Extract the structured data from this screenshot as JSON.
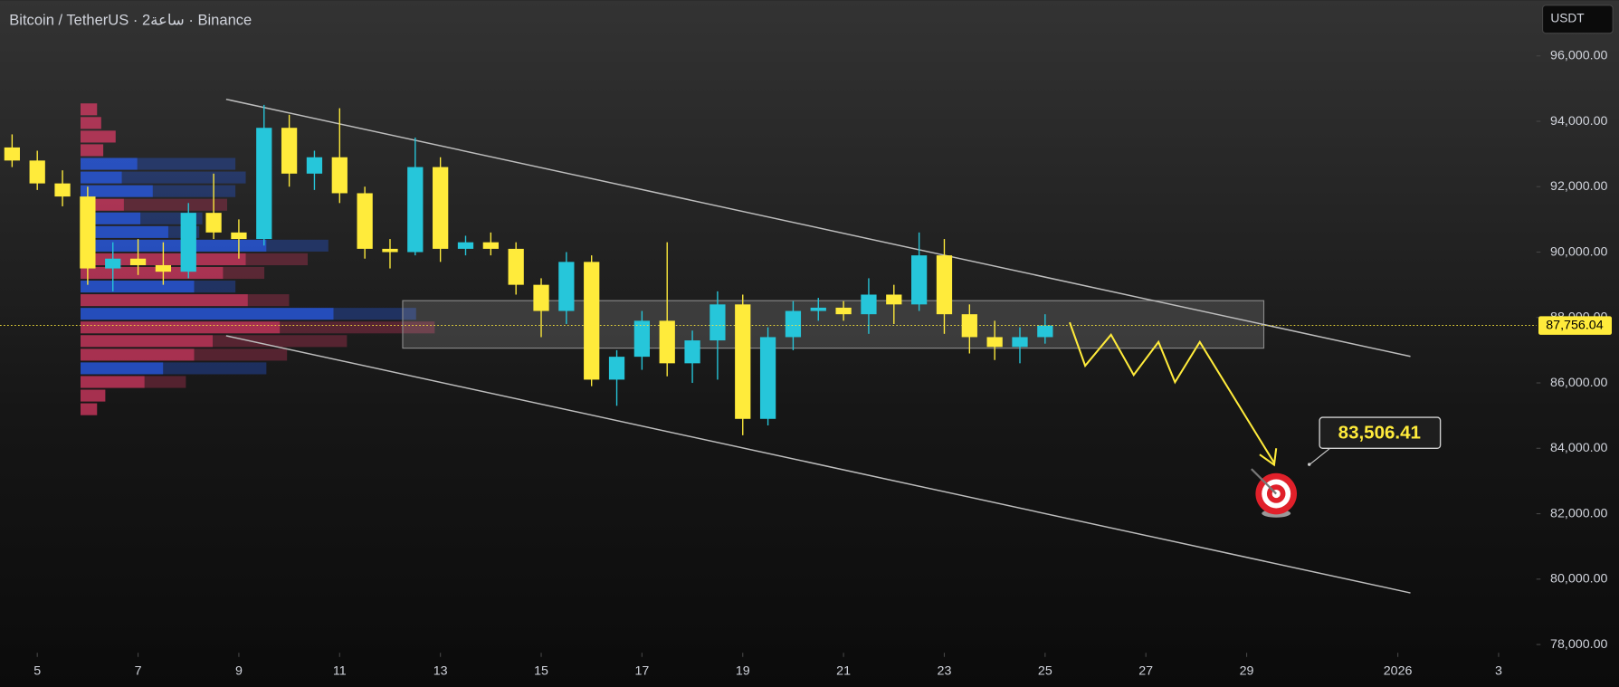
{
  "chart_data": {
    "type": "candlestick",
    "title": "Bitcoin / TetherUS · 2ساعة · Binance",
    "currency_button": "USDT",
    "up_color": "#26c6da",
    "down_color": "#ffeb3b",
    "xlim": [
      4.26,
      34.75
    ],
    "ylim": [
      77747,
      97705
    ],
    "xticks": [
      5,
      7,
      9,
      11,
      13,
      15,
      17,
      19,
      21,
      23,
      25,
      27,
      29,
      {
        "value": 32,
        "label": "2026"
      },
      {
        "value": 34,
        "label": "3"
      }
    ],
    "yticks": [
      {
        "value": 78000,
        "label": "78,000.00"
      },
      {
        "value": 80000,
        "label": "80,000.00"
      },
      {
        "value": 82000,
        "label": "82,000.00"
      },
      {
        "value": 84000,
        "label": "84,000.00"
      },
      {
        "value": 86000,
        "label": "86,000.00"
      },
      {
        "value": 88000,
        "label": "88,000.00"
      },
      {
        "value": 90000,
        "label": "90,000.00"
      },
      {
        "value": 92000,
        "label": "92,000.00"
      },
      {
        "value": 94000,
        "label": "94,000.00"
      },
      {
        "value": 96000,
        "label": "96,000.00"
      }
    ],
    "x": [
      4.5,
      5,
      5.5,
      6,
      6.5,
      7,
      7.5,
      8,
      8.5,
      9,
      9.5,
      10,
      10.5,
      11,
      11.5,
      12,
      12.5,
      13,
      13.5,
      14,
      14.5,
      15,
      15.5,
      16,
      16.5,
      17,
      17.5,
      18,
      18.5,
      19,
      19.5,
      20,
      20.5,
      21,
      21.5,
      22,
      22.5,
      23,
      23.5,
      24,
      24.5,
      25
    ],
    "open": [
      93200,
      92800,
      92100,
      91700,
      89500,
      89800,
      89600,
      89400,
      91200,
      90600,
      90400,
      93800,
      92400,
      92900,
      91800,
      90100,
      90000,
      92600,
      90100,
      90300,
      90100,
      89000,
      88200,
      89700,
      86100,
      86800,
      87900,
      86600,
      87300,
      88400,
      84900,
      87400,
      88200,
      88300,
      88100,
      88700,
      88400,
      89900,
      88100,
      87400,
      87100,
      87400
    ],
    "high": [
      93600,
      93100,
      92500,
      92000,
      90300,
      90400,
      90300,
      91500,
      92400,
      91000,
      94500,
      94200,
      93100,
      94400,
      92000,
      90400,
      93500,
      92900,
      90500,
      90600,
      90300,
      89200,
      90000,
      89900,
      87000,
      88200,
      90300,
      87600,
      88800,
      88700,
      87700,
      88500,
      88600,
      88500,
      89200,
      89000,
      90600,
      90400,
      88400,
      87900,
      87700,
      88100
    ],
    "low": [
      92600,
      91900,
      91400,
      89000,
      88800,
      89300,
      89000,
      89200,
      90400,
      89800,
      90200,
      92000,
      91900,
      91500,
      89800,
      89500,
      89900,
      89700,
      89900,
      89900,
      88700,
      87400,
      87800,
      85900,
      85300,
      86400,
      86200,
      86000,
      86100,
      84400,
      84700,
      87000,
      87900,
      87900,
      87500,
      87800,
      88200,
      87500,
      86900,
      86700,
      86600,
      87200
    ],
    "close": [
      92800,
      92100,
      91700,
      89500,
      89800,
      89600,
      89400,
      91200,
      90600,
      90400,
      93800,
      92400,
      92900,
      91800,
      90100,
      90000,
      92600,
      90100,
      90300,
      90100,
      89000,
      88200,
      89700,
      86100,
      86800,
      87900,
      86600,
      87300,
      88400,
      84900,
      87400,
      88200,
      88300,
      88100,
      88700,
      88400,
      89900,
      88100,
      87400,
      87100,
      87400,
      87756.04
    ],
    "current_price": {
      "value": 87756.04,
      "label": "87,756.04"
    },
    "target": {
      "value": 83506.41,
      "label": "83,506.41"
    }
  }
}
